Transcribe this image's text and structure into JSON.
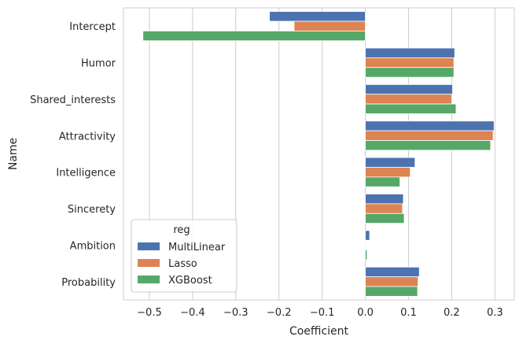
{
  "chart_data": {
    "type": "bar",
    "orientation": "horizontal",
    "xlabel": "Coefficient",
    "ylabel": "Name",
    "xlim": [
      -0.56,
      0.345
    ],
    "xticks": [
      -0.5,
      -0.4,
      -0.3,
      -0.2,
      -0.1,
      0.0,
      0.1,
      0.2,
      0.3
    ],
    "xtick_labels": [
      "−0.5",
      "−0.4",
      "−0.3",
      "−0.2",
      "−0.1",
      "0.0",
      "0.1",
      "0.2",
      "0.3"
    ],
    "grid": "vertical",
    "categories": [
      "Intercept",
      "Humor",
      "Shared_interests",
      "Attractivity",
      "Intelligence",
      "Sincerety",
      "Ambition",
      "Probability"
    ],
    "series": [
      {
        "name": "MultiLinear",
        "color": "#4c72b0",
        "values": [
          -0.222,
          0.207,
          0.202,
          0.298,
          0.115,
          0.088,
          0.01,
          0.125
        ]
      },
      {
        "name": "Lasso",
        "color": "#dd8452",
        "values": [
          -0.165,
          0.205,
          0.2,
          0.296,
          0.104,
          0.086,
          0.0,
          0.122
        ]
      },
      {
        "name": "XGBoost",
        "color": "#55a868",
        "values": [
          -0.515,
          0.205,
          0.21,
          0.29,
          0.08,
          0.09,
          0.004,
          0.121
        ]
      }
    ],
    "legend": {
      "title": "reg",
      "placement": "lower-left"
    }
  }
}
